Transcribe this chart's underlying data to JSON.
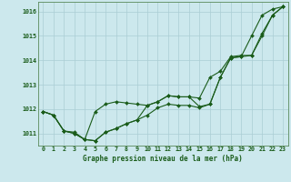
{
  "title": "Graphe pression niveau de la mer (hPa)",
  "bg_color": "#cce8ed",
  "grid_color": "#aacdd4",
  "line_color": "#1a5c1a",
  "marker_color": "#1a5c1a",
  "x_values": [
    0,
    1,
    2,
    3,
    4,
    5,
    6,
    7,
    8,
    9,
    10,
    11,
    12,
    13,
    14,
    15,
    16,
    17,
    18,
    19,
    20,
    21,
    22,
    23
  ],
  "line1": [
    1011.9,
    1011.75,
    1011.1,
    1011.0,
    1010.75,
    1010.7,
    1011.05,
    1011.2,
    1011.4,
    1011.55,
    1011.75,
    1012.05,
    1012.2,
    1012.15,
    1012.15,
    1012.05,
    1012.2,
    1013.3,
    1014.1,
    1014.15,
    1015.0,
    1015.85,
    1016.1,
    1016.2
  ],
  "line2": [
    1011.9,
    1011.75,
    1011.1,
    1011.05,
    1010.75,
    1011.9,
    1012.2,
    1012.3,
    1012.25,
    1012.2,
    1012.15,
    1012.3,
    1012.55,
    1012.5,
    1012.5,
    1012.45,
    1013.3,
    1013.55,
    1014.15,
    1014.2,
    1014.2,
    1015.1,
    1015.85,
    1016.2
  ],
  "line3": [
    1011.9,
    1011.75,
    1011.1,
    1011.0,
    1010.75,
    1010.7,
    1011.05,
    1011.2,
    1011.4,
    1011.55,
    1012.15,
    1012.3,
    1012.55,
    1012.5,
    1012.5,
    1012.1,
    1012.2,
    1013.3,
    1014.1,
    1014.15,
    1014.2,
    1015.0,
    1015.85,
    1016.2
  ],
  "ylim": [
    1010.5,
    1016.4
  ],
  "yticks": [
    1011,
    1012,
    1013,
    1014,
    1015,
    1016
  ],
  "tick_color": "#1a5c1a",
  "font_family": "monospace"
}
